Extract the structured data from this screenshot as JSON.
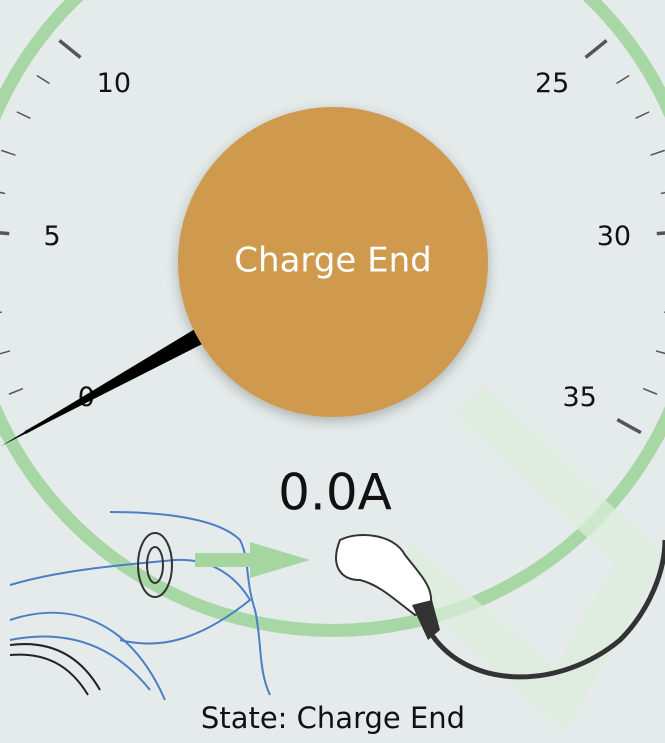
{
  "gauge": {
    "ticks": [
      0,
      5,
      10,
      25,
      30,
      35
    ],
    "reading": {
      "value": 0,
      "label": "0.0A"
    }
  },
  "button": {
    "label": "Charge End"
  },
  "status": {
    "text": "State: Charge End"
  }
}
